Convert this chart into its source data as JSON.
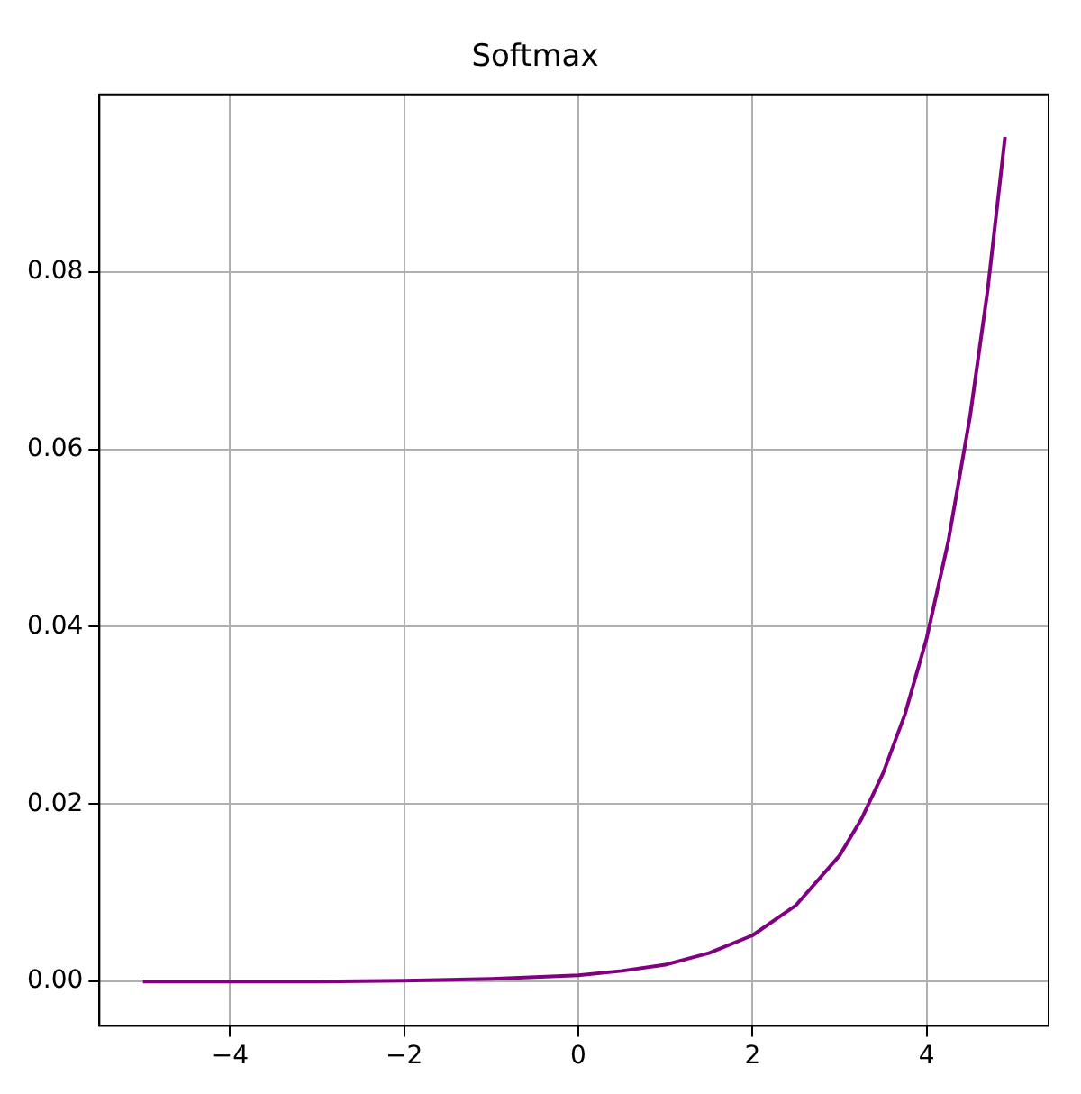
{
  "chart_data": {
    "type": "line",
    "title": "Softmax",
    "x": [
      -5,
      -4,
      -3,
      -2,
      -1,
      0,
      0.5,
      1,
      1.5,
      2,
      2.5,
      3,
      3.25,
      3.5,
      3.75,
      4,
      4.25,
      4.5,
      4.7,
      4.9
    ],
    "series": [
      {
        "color": "#800080",
        "values": [
          0,
          0,
          0,
          0.0001,
          0.0003,
          0.0007,
          0.0012,
          0.0019,
          0.0032,
          0.0052,
          0.0086,
          0.0142,
          0.0183,
          0.0235,
          0.0301,
          0.0387,
          0.0497,
          0.0638,
          0.0779,
          0.0952
        ]
      }
    ],
    "xlim": [
      -5.5,
      5.4
    ],
    "xticks": [
      {
        "value": -4,
        "label": "−4"
      },
      {
        "value": -2,
        "label": "−2"
      },
      0,
      2,
      4
    ],
    "ylim": [
      -0.005,
      0.1
    ],
    "yticks": [
      {
        "value": 0,
        "label": "0.00"
      },
      {
        "value": 0.02,
        "label": "0.02"
      },
      {
        "value": 0.04,
        "label": "0.04"
      },
      {
        "value": 0.06,
        "label": "0.06"
      },
      {
        "value": 0.08,
        "label": "0.08"
      }
    ],
    "grid": true,
    "legend": false,
    "marker": "none",
    "line_style": "solid"
  }
}
